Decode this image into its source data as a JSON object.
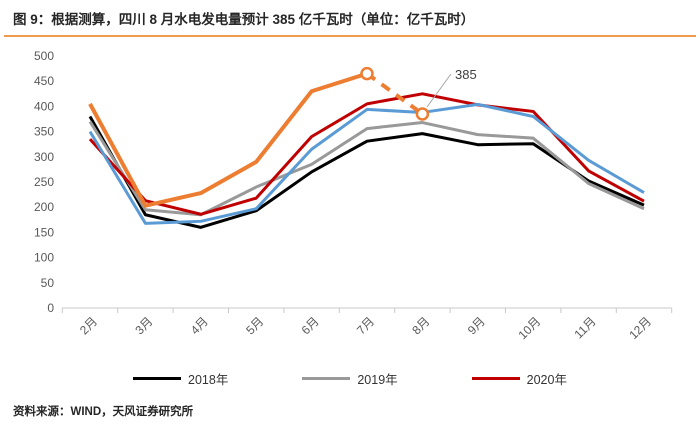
{
  "page": {
    "title": "图 9：根据测算，四川 8 月水电发电量预计 385 亿千瓦时（单位：亿千瓦时）",
    "source": "资料来源：WIND，天风证券研究所"
  },
  "colors": {
    "accent_orange": "#ED7D31",
    "title_rule": "#F09A4D",
    "axis_text": "#595959",
    "series_black": "#000000",
    "series_gray": "#999999",
    "series_red": "#C00000",
    "series_blue": "#5B9BD5"
  },
  "legend": {
    "items": [
      {
        "label": "2018年",
        "color": "#000000"
      },
      {
        "label": "2019年",
        "color": "#999999"
      },
      {
        "label": "2020年",
        "color": "#C00000"
      }
    ]
  },
  "annotation": {
    "label": "385",
    "category": "8月",
    "value": 385,
    "series": "orange"
  },
  "chart_data": {
    "type": "line",
    "title": "图 9：根据测算，四川 8 月水电发电量预计 385 亿千瓦时",
    "unit": "亿千瓦时",
    "categories": [
      "2月",
      "3月",
      "4月",
      "5月",
      "6月",
      "7月",
      "8月",
      "9月",
      "10月",
      "11月",
      "12月"
    ],
    "y_ticks": [
      500,
      450,
      400,
      350,
      300,
      250,
      200,
      150,
      100,
      50,
      0
    ],
    "ylim": [
      0,
      500
    ],
    "grid": false,
    "legend_position": "bottom",
    "series": [
      {
        "name": "2018年",
        "color": "#000000",
        "in_legend": true,
        "values": [
          380,
          185,
          160,
          193,
          270,
          331,
          346,
          324,
          326,
          252,
          204
        ]
      },
      {
        "name": "2019年",
        "color": "#999999",
        "in_legend": true,
        "values": [
          370,
          195,
          185,
          240,
          285,
          356,
          368,
          344,
          337,
          247,
          197
        ]
      },
      {
        "name": "2020年",
        "color": "#C00000",
        "in_legend": true,
        "values": [
          335,
          213,
          186,
          218,
          340,
          405,
          425,
          403,
          390,
          272,
          212
        ]
      },
      {
        "name": "",
        "id": "blue",
        "color": "#5B9BD5",
        "in_legend": false,
        "values": [
          350,
          168,
          172,
          197,
          315,
          394,
          388,
          404,
          380,
          293,
          229
        ]
      },
      {
        "name": "",
        "id": "orange",
        "color": "#ED7D31",
        "in_legend": false,
        "values": [
          405,
          203,
          228,
          290,
          430,
          465,
          385,
          null,
          null,
          null,
          null
        ],
        "dash_from": 5,
        "markers": [
          5,
          6
        ]
      }
    ]
  }
}
